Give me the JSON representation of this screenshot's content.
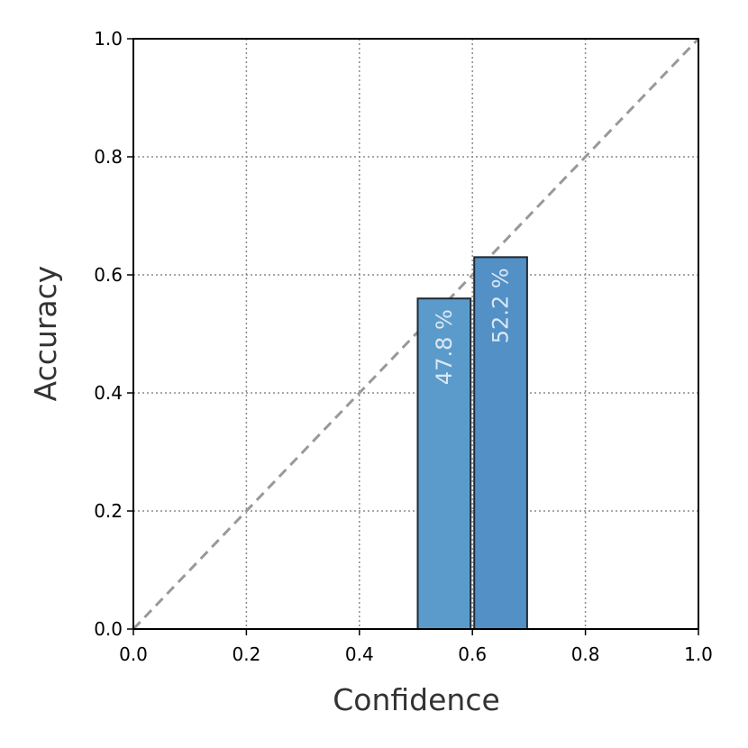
{
  "chart_data": {
    "type": "bar",
    "xlabel": "Confidence",
    "ylabel": "Accuracy",
    "xlim": [
      0.0,
      1.0
    ],
    "ylim": [
      0.0,
      1.0
    ],
    "xticks": [
      "0.0",
      "0.2",
      "0.4",
      "0.6",
      "0.8",
      "1.0"
    ],
    "yticks": [
      "0.0",
      "0.2",
      "0.4",
      "0.6",
      "0.8",
      "1.0"
    ],
    "grid": true,
    "grid_style": "dotted",
    "diagonal_reference": true,
    "bars": [
      {
        "x_start": 0.5,
        "x_end": 0.6,
        "value": 0.56,
        "label": "47.8 %",
        "color": "#5b9bcb"
      },
      {
        "x_start": 0.6,
        "x_end": 0.7,
        "value": 0.63,
        "label": "52.2 %",
        "color": "#5290c6"
      }
    ]
  },
  "colors": {
    "bar_edge": "#1f2a35",
    "grid": "#8c8c8c",
    "diagonal": "#999999",
    "bar_label": "#dbe8f4"
  }
}
